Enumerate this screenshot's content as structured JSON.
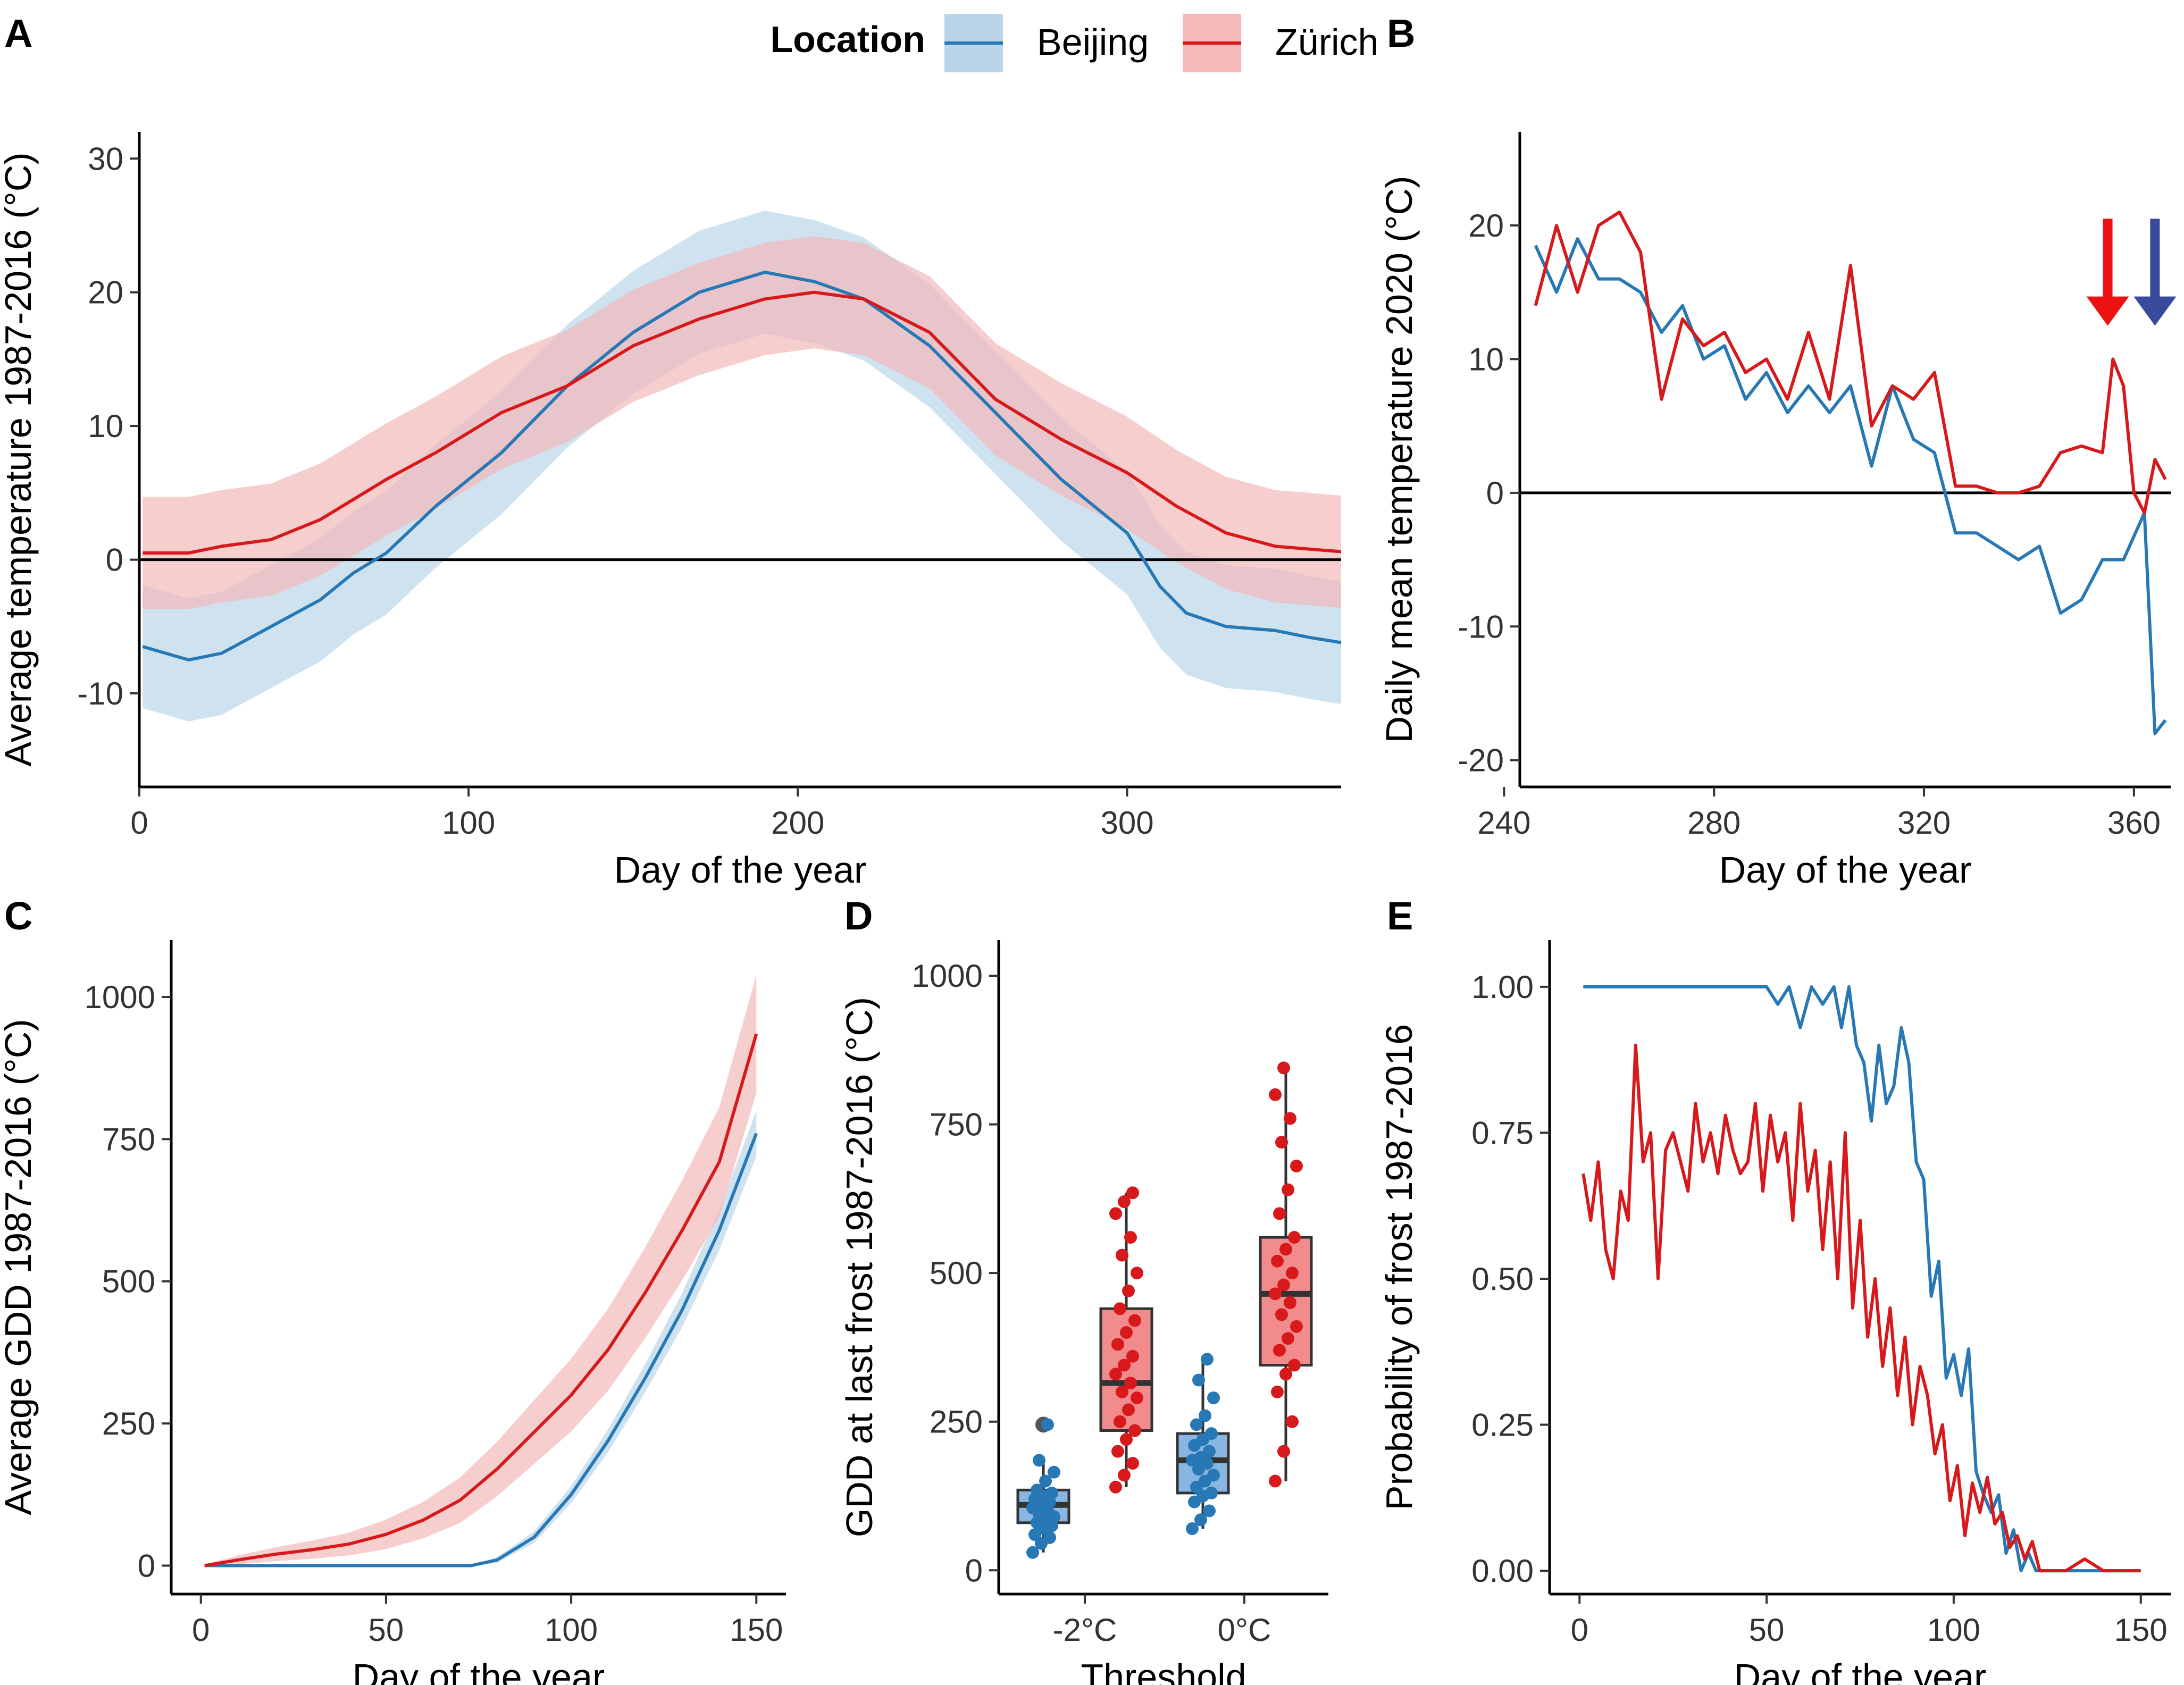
{
  "legend": {
    "title": "Location",
    "entries": [
      {
        "label": "Beijing",
        "color": "#2878b5",
        "fill": "#b9d5ea"
      },
      {
        "label": "Zürich",
        "color": "#d7191c",
        "fill": "#f4b9b9"
      }
    ]
  },
  "chart_data": [
    {
      "panel": "A",
      "type": "line",
      "xlabel": "Day of the year",
      "ylabel": "Average temperature 1987-2016 (°C)",
      "xlim": [
        0,
        365
      ],
      "ylim": [
        -17,
        32
      ],
      "xticks": [
        0,
        100,
        200,
        300
      ],
      "yticks": [
        -10,
        0,
        10,
        20,
        30
      ],
      "hline": 0,
      "series": [
        {
          "name": "Beijing",
          "band_halfwidth": 4.6,
          "x": [
            1,
            15,
            25,
            40,
            55,
            65,
            75,
            90,
            110,
            130,
            150,
            170,
            190,
            205,
            220,
            240,
            260,
            280,
            300,
            310,
            318,
            330,
            345,
            355,
            365
          ],
          "y": [
            -6.5,
            -7.5,
            -7,
            -5,
            -3,
            -1,
            0.5,
            4,
            8,
            13,
            17,
            20,
            21.5,
            20.8,
            19.5,
            16,
            11,
            6,
            2,
            -2,
            -4,
            -5,
            -5.3,
            -5.8,
            -6.2
          ]
        },
        {
          "name": "Zürich",
          "band_halfwidth": 4.2,
          "x": [
            1,
            15,
            25,
            40,
            55,
            75,
            90,
            110,
            130,
            150,
            170,
            190,
            205,
            220,
            240,
            260,
            280,
            300,
            315,
            330,
            345,
            355,
            365
          ],
          "y": [
            0.5,
            0.5,
            1,
            1.5,
            3,
            6,
            8,
            11,
            13,
            16,
            18,
            19.5,
            20,
            19.5,
            17,
            12,
            9,
            6.5,
            4,
            2,
            1,
            0.8,
            0.6
          ]
        }
      ]
    },
    {
      "panel": "B",
      "type": "line",
      "xlabel": "Day of the year",
      "ylabel": "Daily mean temperature 2020 (°C)",
      "xlim": [
        243,
        367
      ],
      "ylim": [
        -22,
        27
      ],
      "xticks": [
        240,
        280,
        320,
        360
      ],
      "yticks": [
        -20,
        -10,
        0,
        10,
        20
      ],
      "hline": 0,
      "annotations": [
        {
          "type": "arrow-down",
          "x": 355,
          "color": "#ee1111"
        },
        {
          "type": "arrow-down",
          "x": 364,
          "color": "#3a4a9a"
        }
      ],
      "series": [
        {
          "name": "Beijing",
          "x": [
            246,
            250,
            254,
            258,
            262,
            266,
            270,
            274,
            278,
            282,
            286,
            290,
            294,
            298,
            302,
            306,
            310,
            314,
            318,
            322,
            326,
            330,
            334,
            338,
            342,
            346,
            350,
            354,
            358,
            362,
            364,
            366
          ],
          "y": [
            18.5,
            15,
            19,
            16,
            16,
            15,
            12,
            14,
            10,
            11,
            7,
            9,
            6,
            8,
            6,
            8,
            2,
            8,
            4,
            3,
            -3,
            -3,
            -4,
            -5,
            -4,
            -9,
            -8,
            -5,
            -5,
            -1.5,
            -18,
            -17
          ]
        },
        {
          "name": "Zürich",
          "x": [
            246,
            250,
            254,
            258,
            262,
            266,
            270,
            274,
            278,
            282,
            286,
            290,
            294,
            298,
            302,
            306,
            310,
            314,
            318,
            322,
            326,
            330,
            334,
            338,
            342,
            346,
            350,
            354,
            356,
            358,
            360,
            362,
            364,
            366
          ],
          "y": [
            14,
            20,
            15,
            20,
            21,
            18,
            7,
            13,
            11,
            12,
            9,
            10,
            7,
            12,
            7,
            17,
            5,
            8,
            7,
            9,
            0.5,
            0.5,
            0,
            0,
            0.5,
            3,
            3.5,
            3,
            10,
            8,
            0,
            -1.5,
            2.5,
            1
          ]
        }
      ]
    },
    {
      "panel": "C",
      "type": "line",
      "xlabel": "Day of the year",
      "ylabel": "Average GDD 1987-2016 (°C)",
      "xlim": [
        -8,
        158
      ],
      "ylim": [
        -50,
        1100
      ],
      "xticks": [
        0,
        50,
        100,
        150
      ],
      "yticks": [
        0,
        250,
        500,
        750,
        1000
      ],
      "series": [
        {
          "name": "Beijing",
          "x": [
            1,
            20,
            40,
            60,
            73,
            80,
            90,
            100,
            110,
            120,
            130,
            140,
            150
          ],
          "y": [
            0,
            0,
            0,
            0,
            0,
            10,
            50,
            125,
            220,
            330,
            450,
            590,
            760
          ],
          "band_halfwidth": [
            0,
            0,
            0,
            0,
            0,
            5,
            10,
            15,
            20,
            25,
            30,
            35,
            40
          ]
        },
        {
          "name": "Zürich",
          "x": [
            1,
            10,
            20,
            30,
            40,
            50,
            60,
            70,
            80,
            90,
            100,
            110,
            120,
            130,
            140,
            150
          ],
          "y": [
            0,
            10,
            20,
            28,
            38,
            55,
            80,
            115,
            170,
            235,
            300,
            380,
            480,
            590,
            710,
            935
          ],
          "band_halfwidth": [
            2,
            8,
            12,
            16,
            20,
            26,
            32,
            40,
            48,
            56,
            64,
            72,
            80,
            88,
            96,
            104
          ]
        }
      ]
    },
    {
      "panel": "D",
      "type": "box",
      "xlabel": "Threshold",
      "ylabel": "GDD at last frost 1987-2016 (°C)",
      "ylim": [
        -40,
        1060
      ],
      "yticks": [
        0,
        250,
        500,
        750,
        1000
      ],
      "categories": [
        "-2°C",
        "0°C"
      ],
      "series": [
        {
          "name": "Beijing",
          "boxes": [
            {
              "category": "-2°C",
              "min": 30,
              "q1": 80,
              "median": 110,
              "q3": 135,
              "max": 185,
              "outliers": [
                245
              ],
              "points": [
                30,
                45,
                55,
                60,
                70,
                75,
                80,
                85,
                90,
                95,
                100,
                105,
                110,
                115,
                120,
                125,
                130,
                135,
                150,
                165,
                185,
                245
              ]
            },
            {
              "category": "0°C",
              "min": 70,
              "q1": 130,
              "median": 185,
              "q3": 230,
              "max": 355,
              "outliers": [],
              "points": [
                70,
                85,
                100,
                115,
                125,
                130,
                140,
                150,
                160,
                170,
                180,
                185,
                190,
                200,
                210,
                220,
                230,
                245,
                260,
                290,
                320,
                355
              ]
            }
          ]
        },
        {
          "name": "Zürich",
          "boxes": [
            {
              "category": "-2°C",
              "min": 140,
              "q1": 235,
              "median": 315,
              "q3": 440,
              "max": 635,
              "outliers": [],
              "points": [
                140,
                160,
                180,
                200,
                220,
                235,
                250,
                270,
                290,
                300,
                315,
                330,
                345,
                360,
                380,
                400,
                420,
                440,
                470,
                500,
                530,
                560,
                600,
                620,
                635
              ]
            },
            {
              "category": "0°C",
              "min": 150,
              "q1": 345,
              "median": 465,
              "q3": 560,
              "max": 845,
              "outliers": [],
              "points": [
                150,
                200,
                250,
                300,
                330,
                345,
                370,
                390,
                410,
                430,
                450,
                465,
                480,
                500,
                520,
                540,
                560,
                600,
                640,
                680,
                720,
                760,
                800,
                845
              ]
            }
          ]
        }
      ]
    },
    {
      "panel": "E",
      "type": "line",
      "xlabel": "Day of the year",
      "ylabel": "Probability of frost 1987-2016",
      "xlim": [
        -8,
        158
      ],
      "ylim": [
        -0.04,
        1.08
      ],
      "xticks": [
        0,
        50,
        100,
        150
      ],
      "yticks": [
        0.0,
        0.25,
        0.5,
        0.75,
        1.0
      ],
      "yticklabels": [
        "0.00",
        "0.25",
        "0.50",
        "0.75",
        "1.00"
      ],
      "series": [
        {
          "name": "Beijing",
          "x": [
            1,
            10,
            20,
            30,
            40,
            50,
            53,
            56,
            59,
            62,
            65,
            68,
            70,
            72,
            74,
            76,
            78,
            80,
            82,
            84,
            86,
            88,
            90,
            92,
            94,
            96,
            98,
            100,
            102,
            104,
            106,
            108,
            110,
            112,
            114,
            116,
            118,
            120,
            122,
            124,
            150
          ],
          "y": [
            1,
            1,
            1,
            1,
            1,
            1,
            0.97,
            1,
            0.93,
            1,
            0.97,
            1,
            0.93,
            1,
            0.9,
            0.87,
            0.77,
            0.9,
            0.8,
            0.83,
            0.93,
            0.87,
            0.7,
            0.67,
            0.47,
            0.53,
            0.33,
            0.37,
            0.3,
            0.38,
            0.17,
            0.13,
            0.1,
            0.13,
            0.03,
            0.07,
            0,
            0.03,
            0,
            0,
            0
          ]
        },
        {
          "name": "Zürich",
          "x": [
            1,
            3,
            5,
            7,
            9,
            11,
            13,
            15,
            17,
            19,
            21,
            23,
            25,
            27,
            29,
            31,
            33,
            35,
            37,
            39,
            41,
            43,
            45,
            47,
            49,
            51,
            53,
            55,
            57,
            59,
            61,
            63,
            65,
            67,
            69,
            71,
            73,
            75,
            77,
            79,
            81,
            83,
            85,
            87,
            89,
            91,
            93,
            95,
            97,
            99,
            101,
            103,
            105,
            107,
            109,
            111,
            113,
            115,
            117,
            119,
            121,
            123,
            125,
            130,
            135,
            140,
            150
          ],
          "y": [
            0.68,
            0.6,
            0.7,
            0.55,
            0.5,
            0.65,
            0.6,
            0.9,
            0.7,
            0.75,
            0.5,
            0.72,
            0.75,
            0.7,
            0.65,
            0.8,
            0.7,
            0.75,
            0.68,
            0.78,
            0.72,
            0.68,
            0.7,
            0.8,
            0.65,
            0.78,
            0.7,
            0.75,
            0.6,
            0.8,
            0.65,
            0.72,
            0.55,
            0.7,
            0.5,
            0.75,
            0.45,
            0.6,
            0.4,
            0.5,
            0.35,
            0.45,
            0.3,
            0.4,
            0.25,
            0.35,
            0.3,
            0.2,
            0.25,
            0.12,
            0.18,
            0.06,
            0.15,
            0.1,
            0.16,
            0.08,
            0.1,
            0.04,
            0.06,
            0.02,
            0.05,
            0,
            0,
            0,
            0.02,
            0,
            0
          ]
        }
      ]
    }
  ]
}
